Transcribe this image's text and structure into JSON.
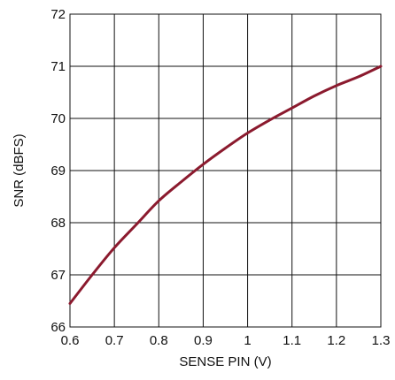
{
  "chart_data": {
    "type": "line",
    "title": "",
    "xlabel": "SENSE PIN (V)",
    "ylabel": "SNR (dBFS)",
    "xlim": [
      0.6,
      1.3
    ],
    "ylim": [
      66,
      72
    ],
    "xticks": [
      0.6,
      0.7,
      0.8,
      0.9,
      1,
      1.1,
      1.2,
      1.3
    ],
    "xtick_labels": [
      "0.6",
      "0.7",
      "0.8",
      "0.9",
      "1",
      "1.1",
      "1.2",
      "1.3"
    ],
    "yticks": [
      66,
      67,
      68,
      69,
      70,
      71,
      72
    ],
    "ytick_labels": [
      "66",
      "67",
      "68",
      "69",
      "70",
      "71",
      "72"
    ],
    "grid": true,
    "line_color": "#8b1a2e",
    "series": [
      {
        "x": [
          0.6,
          0.65,
          0.7,
          0.75,
          0.8,
          0.85,
          0.9,
          0.95,
          1.0,
          1.05,
          1.1,
          1.15,
          1.2,
          1.25,
          1.3
        ],
        "values": [
          66.45,
          67.0,
          67.52,
          67.97,
          68.42,
          68.78,
          69.12,
          69.43,
          69.72,
          69.97,
          70.2,
          70.43,
          70.63,
          70.8,
          71.0
        ]
      }
    ]
  }
}
